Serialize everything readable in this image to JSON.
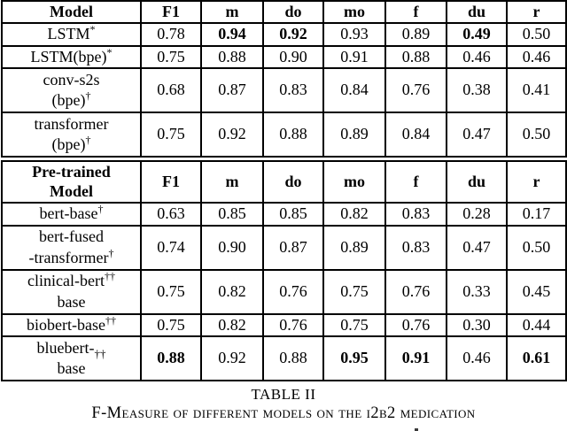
{
  "caption": {
    "label": "TABLE II",
    "text": "F-Measure of different models on the i2b2 medication"
  },
  "tables": [
    {
      "name": "baseline-models",
      "columns": [
        "Model",
        "F1",
        "m",
        "do",
        "mo",
        "f",
        "du",
        "r"
      ],
      "rows": [
        {
          "model": [
            {
              "t": "LSTM"
            },
            {
              "sup": "*"
            }
          ],
          "values": [
            "0.78",
            "0.94",
            "0.92",
            "0.93",
            "0.89",
            "0.49",
            "0.50"
          ],
          "bold": [
            0,
            1,
            1,
            0,
            0,
            1,
            0
          ]
        },
        {
          "model": [
            {
              "t": "LSTM(bpe)"
            },
            {
              "sup": "*"
            }
          ],
          "values": [
            "0.75",
            "0.88",
            "0.90",
            "0.91",
            "0.88",
            "0.46",
            "0.46"
          ],
          "bold": [
            0,
            0,
            0,
            0,
            0,
            0,
            0
          ]
        },
        {
          "model": [
            {
              "t": "conv-s2s"
            },
            {
              "br": true
            },
            {
              "t": "(bpe)"
            },
            {
              "sup": "†"
            }
          ],
          "values": [
            "0.68",
            "0.87",
            "0.83",
            "0.84",
            "0.76",
            "0.38",
            "0.41"
          ],
          "bold": [
            0,
            0,
            0,
            0,
            0,
            0,
            0
          ]
        },
        {
          "model": [
            {
              "t": "transformer"
            },
            {
              "br": true
            },
            {
              "t": "(bpe)"
            },
            {
              "sup": "†"
            }
          ],
          "values": [
            "0.75",
            "0.92",
            "0.88",
            "0.89",
            "0.84",
            "0.47",
            "0.50"
          ],
          "bold": [
            0,
            0,
            0,
            0,
            0,
            0,
            0
          ]
        }
      ]
    },
    {
      "name": "pretrained-models",
      "columns": [
        "Pre-trained\nModel",
        "F1",
        "m",
        "do",
        "mo",
        "f",
        "du",
        "r"
      ],
      "rows": [
        {
          "model": [
            {
              "t": "bert-base"
            },
            {
              "sup": "†"
            }
          ],
          "values": [
            "0.63",
            "0.85",
            "0.85",
            "0.82",
            "0.83",
            "0.28",
            "0.17"
          ],
          "bold": [
            0,
            0,
            0,
            0,
            0,
            0,
            0
          ]
        },
        {
          "model": [
            {
              "t": "bert-fused"
            },
            {
              "br": true
            },
            {
              "t": "-transformer"
            },
            {
              "sup": "†"
            }
          ],
          "values": [
            "0.74",
            "0.90",
            "0.87",
            "0.89",
            "0.83",
            "0.47",
            "0.50"
          ],
          "bold": [
            0,
            0,
            0,
            0,
            0,
            0,
            0
          ]
        },
        {
          "model": [
            {
              "t": "clinical-bert"
            },
            {
              "sup": "††"
            },
            {
              "br": true
            },
            {
              "t": "base"
            }
          ],
          "values": [
            "0.75",
            "0.82",
            "0.76",
            "0.75",
            "0.76",
            "0.33",
            "0.45"
          ],
          "bold": [
            0,
            0,
            0,
            0,
            0,
            0,
            0
          ]
        },
        {
          "model": [
            {
              "t": "biobert-base"
            },
            {
              "sup": "††"
            }
          ],
          "values": [
            "0.75",
            "0.82",
            "0.76",
            "0.75",
            "0.76",
            "0.30",
            "0.44"
          ],
          "bold": [
            0,
            0,
            0,
            0,
            0,
            0,
            0
          ]
        },
        {
          "model": [
            {
              "t": "bluebert-"
            },
            {
              "sub": "††"
            },
            {
              "br": true
            },
            {
              "t": "base"
            }
          ],
          "values": [
            "0.88",
            "0.92",
            "0.88",
            "0.95",
            "0.91",
            "0.46",
            "0.61"
          ],
          "bold": [
            1,
            0,
            0,
            1,
            1,
            0,
            1
          ]
        }
      ]
    }
  ]
}
